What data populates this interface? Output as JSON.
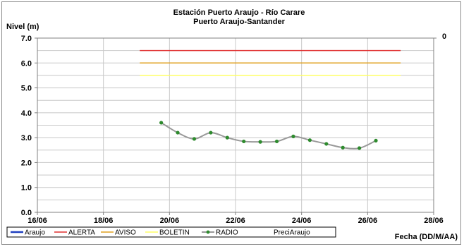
{
  "chart_data": {
    "type": "line",
    "title": "Estación Puerto Araujo - Río Carare",
    "subtitle": "Puerto Araujo-Santander",
    "ylabel": "Nivel (m)",
    "xlabel": "Fecha (DD/M/AA)",
    "y2_label": "0",
    "ylim": [
      0,
      7
    ],
    "yticks": [
      "0.0",
      "1.0",
      "2.0",
      "3.0",
      "4.0",
      "5.0",
      "6.0",
      "7.0"
    ],
    "xlim": [
      16,
      28
    ],
    "xticks": [
      {
        "value": 16,
        "label": "16/06"
      },
      {
        "value": 18,
        "label": "18/06"
      },
      {
        "value": 20,
        "label": "20/06"
      },
      {
        "value": 22,
        "label": "22/06"
      },
      {
        "value": 24,
        "label": "24/06"
      },
      {
        "value": 26,
        "label": "26/06"
      },
      {
        "value": 28,
        "label": "28/06"
      }
    ],
    "grid": true,
    "legend_position": "bottom",
    "thresholds": [
      {
        "name": "ALERTA",
        "value": 6.5,
        "x_range": [
          19.1,
          27
        ],
        "color": "#e03030"
      },
      {
        "name": "AVISO",
        "value": 6.0,
        "x_range": [
          19.1,
          27
        ],
        "color": "#e0a020"
      },
      {
        "name": "BOLETIN",
        "value": 5.5,
        "x_range": [
          19.1,
          27
        ],
        "color": "#ffff66"
      }
    ],
    "series": [
      {
        "name": "Araujo",
        "color": "#1f3fbf",
        "x": [],
        "y": []
      },
      {
        "name": "RADIO",
        "color": "#999999",
        "marker_color": "#2e8b2e",
        "x": [
          19.75,
          20.25,
          20.75,
          21.25,
          21.75,
          22.25,
          22.75,
          23.25,
          23.75,
          24.25,
          24.75,
          25.25,
          25.75,
          26.25
        ],
        "y": [
          3.6,
          3.2,
          2.95,
          3.2,
          3.0,
          2.85,
          2.83,
          2.85,
          3.05,
          2.9,
          2.75,
          2.6,
          2.58,
          2.88
        ]
      },
      {
        "name": "PreciAraujo",
        "color": "#ffffff",
        "x": [],
        "y": []
      }
    ]
  }
}
